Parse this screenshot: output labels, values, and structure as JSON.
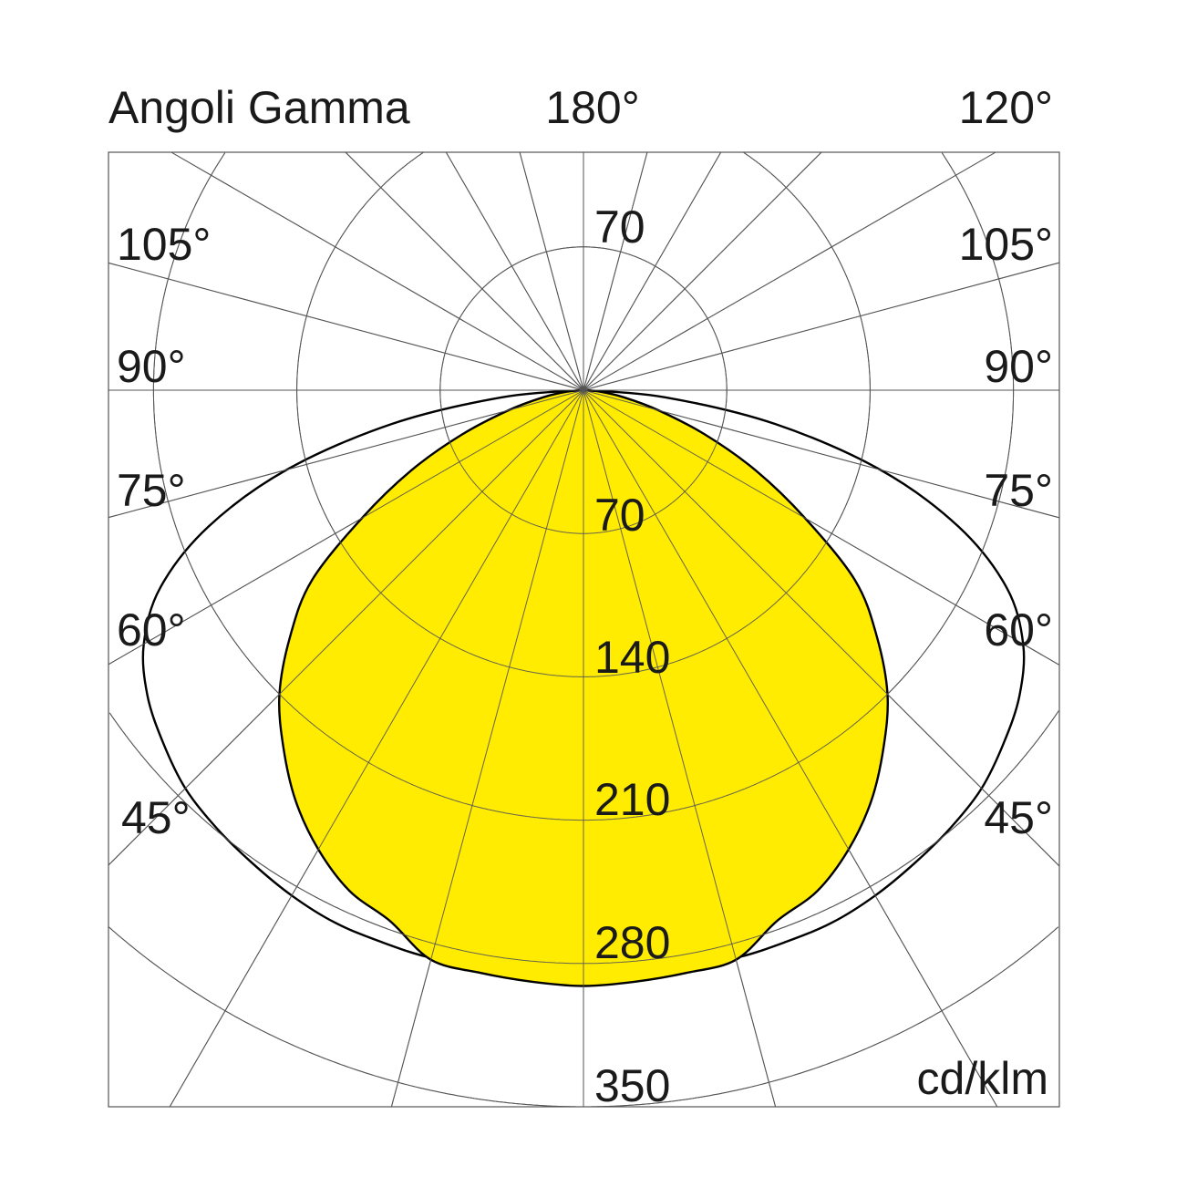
{
  "chart_data": {
    "type": "polar",
    "title": "Angoli Gamma",
    "unit": "cd/klm",
    "top_labels": {
      "center": "180°",
      "right": "120°"
    },
    "radial_ticks": [
      70,
      140,
      210,
      280,
      350
    ],
    "radial_tick_labels": [
      "70",
      "140",
      "210",
      "280",
      "350"
    ],
    "upper_ring_label": "70",
    "rmax": 350,
    "angle_step_deg": 15,
    "angle_labels": [
      "105°",
      "90°",
      "75°",
      "60°",
      "45°"
    ],
    "gamma_deg": [
      0,
      5,
      10,
      15,
      20,
      25,
      30,
      35,
      40,
      45,
      50,
      55,
      60,
      65,
      70,
      75,
      80,
      85,
      90
    ],
    "series": [
      {
        "color": "#000000",
        "fill": "none",
        "values": [
          281,
          282,
          284,
          287,
          287,
          287,
          285,
          282,
          279,
          275,
          268,
          260,
          248,
          228,
          195,
          150,
          95,
          40,
          0
        ]
      },
      {
        "color": "#000000",
        "fill": "#ffec00",
        "values": [
          291,
          290,
          289,
          288,
          276,
          270,
          259,
          245,
          228,
          210,
          187,
          162,
          125,
          93,
          63,
          38,
          20,
          8,
          0
        ]
      }
    ],
    "symmetric": true,
    "grid": true
  }
}
